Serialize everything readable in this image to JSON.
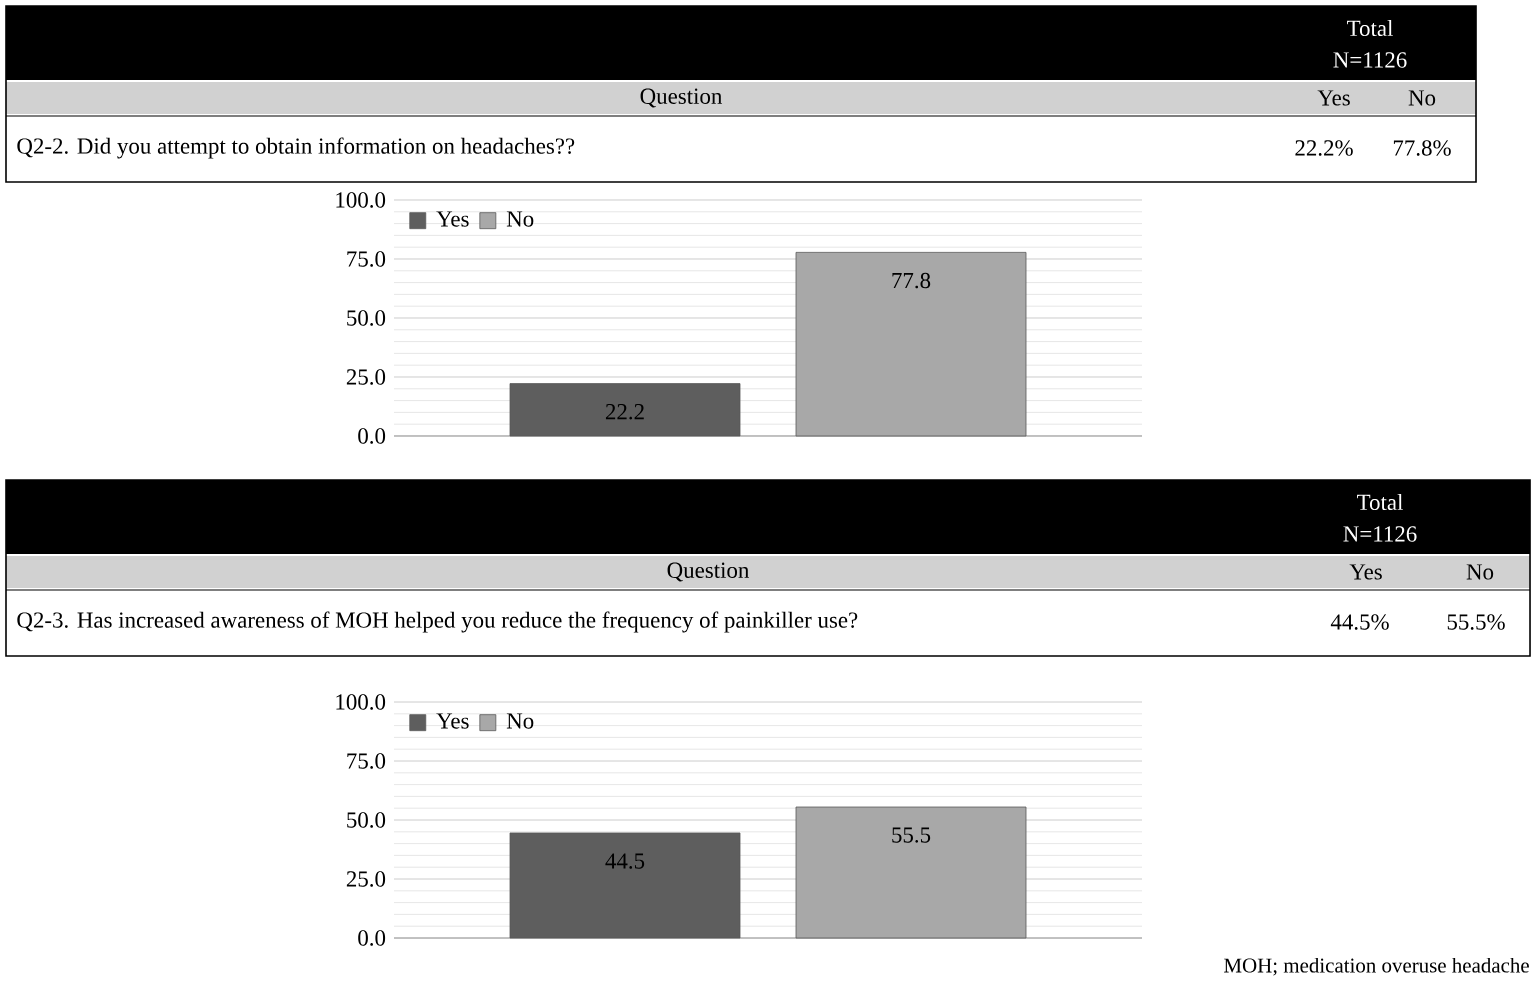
{
  "chart_data": [
    {
      "type": "bar",
      "title": "Q2-2. Did you attempt to obtain information on headaches??",
      "categories": [
        null
      ],
      "series": [
        {
          "name": "Yes",
          "color": "#5e5e5e",
          "values": [
            22.2
          ]
        },
        {
          "name": "No",
          "color": "#a8a8a8",
          "values": [
            77.8
          ]
        }
      ],
      "ylim": [
        0,
        100
      ],
      "yticks": [
        {
          "value": 0,
          "label": "0.0"
        },
        {
          "value": 25,
          "label": "25.0"
        },
        {
          "value": 50,
          "label": "50.0"
        },
        {
          "value": 75,
          "label": "75.0"
        },
        {
          "value": 100,
          "label": "100.0"
        }
      ],
      "grid": "y",
      "legend": "top left",
      "data_labels": true,
      "annotations": [
        "Total",
        "N=1126",
        "Question",
        "Yes",
        "No",
        "22.2%",
        "77.8%"
      ]
    },
    {
      "type": "bar",
      "title": "Q2-3. Has increased awareness of MOH helped you reduce the frequency of painkiller use?",
      "categories": [
        null
      ],
      "series": [
        {
          "name": "Yes",
          "color": "#5e5e5e",
          "values": [
            44.5
          ]
        },
        {
          "name": "No",
          "color": "#a8a8a8",
          "values": [
            55.5
          ]
        }
      ],
      "ylim": [
        0,
        100
      ],
      "yticks": [
        {
          "value": 0,
          "label": "0.0"
        },
        {
          "value": 25,
          "label": "25.0"
        },
        {
          "value": 50,
          "label": "50.0"
        },
        {
          "value": 75,
          "label": "75.0"
        },
        {
          "value": 100,
          "label": "100.0"
        }
      ],
      "grid": "y",
      "legend": "top left",
      "data_labels": true,
      "annotations": [
        "Total",
        "N=1126",
        "Question",
        "Yes",
        "No",
        "44.5%",
        "55.5%",
        "MOH; medication overuse headache"
      ]
    }
  ]
}
